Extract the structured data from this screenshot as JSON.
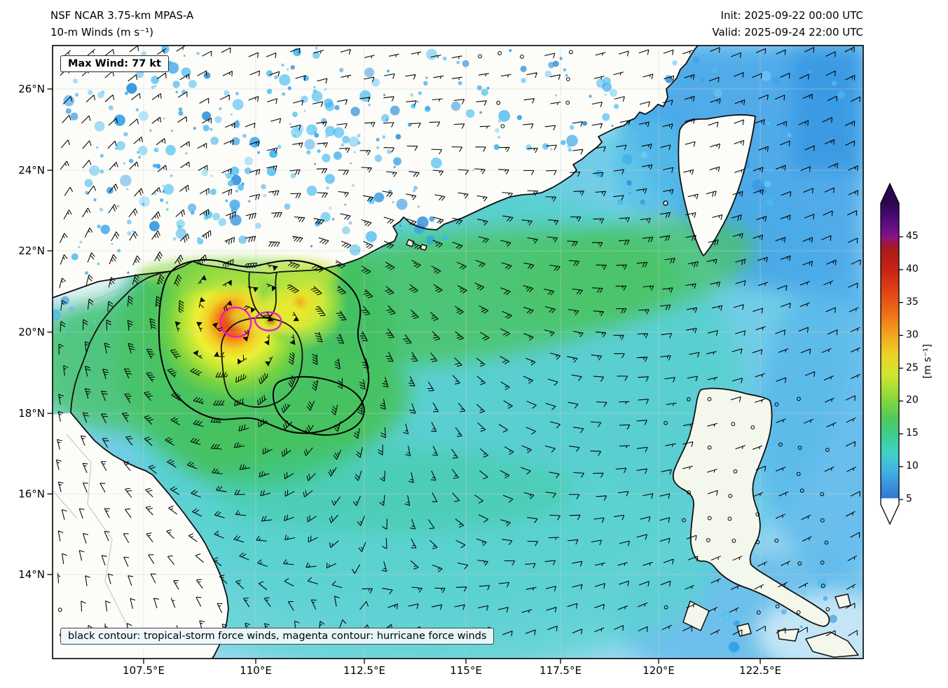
{
  "header": {
    "title_line1": "NSF NCAR 3.75-km MPAS-A",
    "title_line2": "10-m Winds (m s⁻¹)",
    "init_line": "Init: 2025-09-22 00:00 UTC",
    "valid_line": "Valid: 2025-09-24 22:00 UTC"
  },
  "map": {
    "max_wind_label": "Max Wind: 77 kt",
    "caption": "black contour: tropical-storm force winds, magenta contour: hurricane force winds",
    "x_tick_labels": [
      "107.5°E",
      "110°E",
      "112.5°E",
      "115°E",
      "117.5°E",
      "120°E",
      "122.5°E"
    ],
    "y_tick_labels": [
      "26°N",
      "24°N",
      "22°N",
      "20°N",
      "18°N",
      "16°N",
      "14°N"
    ]
  },
  "colorbar": {
    "tick_labels": [
      "45",
      "40",
      "35",
      "30",
      "25",
      "20",
      "15",
      "10",
      "5"
    ],
    "unit_label": "[m s⁻¹]"
  },
  "chart_data": {
    "type": "heatmap",
    "title": "NSF NCAR 3.75-km MPAS-A — 10-m Winds (m s⁻¹)",
    "variable": "10-m wind speed",
    "units": "m s⁻¹",
    "init_time": "2025-09-22 00:00 UTC",
    "valid_time": "2025-09-24 22:00 UTC",
    "max_wind_kt": 77,
    "x_ticks_lon_E": [
      107.5,
      110,
      112.5,
      115,
      117.5,
      120,
      122.5
    ],
    "y_ticks_lat_N": [
      26,
      24,
      22,
      20,
      18,
      16,
      14
    ],
    "colorbar_ticks_ms": [
      5,
      10,
      15,
      20,
      25,
      30,
      35,
      40,
      45
    ],
    "colorbar_range_ms": [
      5,
      45
    ],
    "annotations": [
      "black contour: tropical-storm force winds",
      "magenta contour: hurricane force winds"
    ],
    "storm_center_approx": {
      "lon_E": 109.6,
      "lat_N": 20.2
    }
  }
}
